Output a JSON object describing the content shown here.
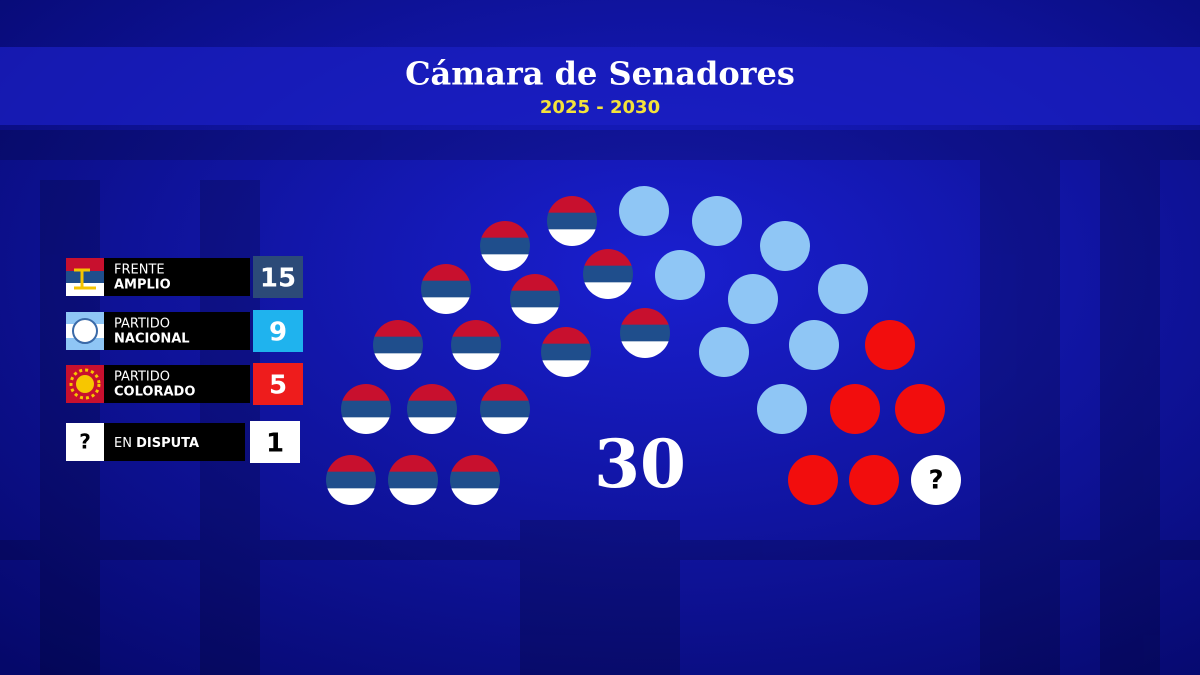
{
  "chart_data": {
    "type": "parliament",
    "title": "Cámara de Senadores",
    "subtitle": "2025 - 2030",
    "total": 30,
    "series": [
      {
        "name_light": "FRENTE",
        "name_bold": "AMPLIO",
        "values": 15,
        "color": "#2c4a78",
        "seat_colors": [
          "#c8102e",
          "#1f4e8c",
          "#ffffff"
        ]
      },
      {
        "name_light": "PARTIDO",
        "name_bold": "NACIONAL",
        "values": 9,
        "color": "#1fb3ee",
        "seat_colors": [
          "#8fc6f5"
        ]
      },
      {
        "name_light": "PARTIDO",
        "name_bold": "COLORADO",
        "values": 5,
        "color": "#ee1c1c",
        "seat_colors": [
          "#f20d0d"
        ]
      },
      {
        "name_light": "EN",
        "name_bold": "DISPUTA",
        "values": 1,
        "color": "#ffffff",
        "seat_colors": [
          "#ffffff"
        ],
        "icon_label": "?"
      }
    ]
  }
}
